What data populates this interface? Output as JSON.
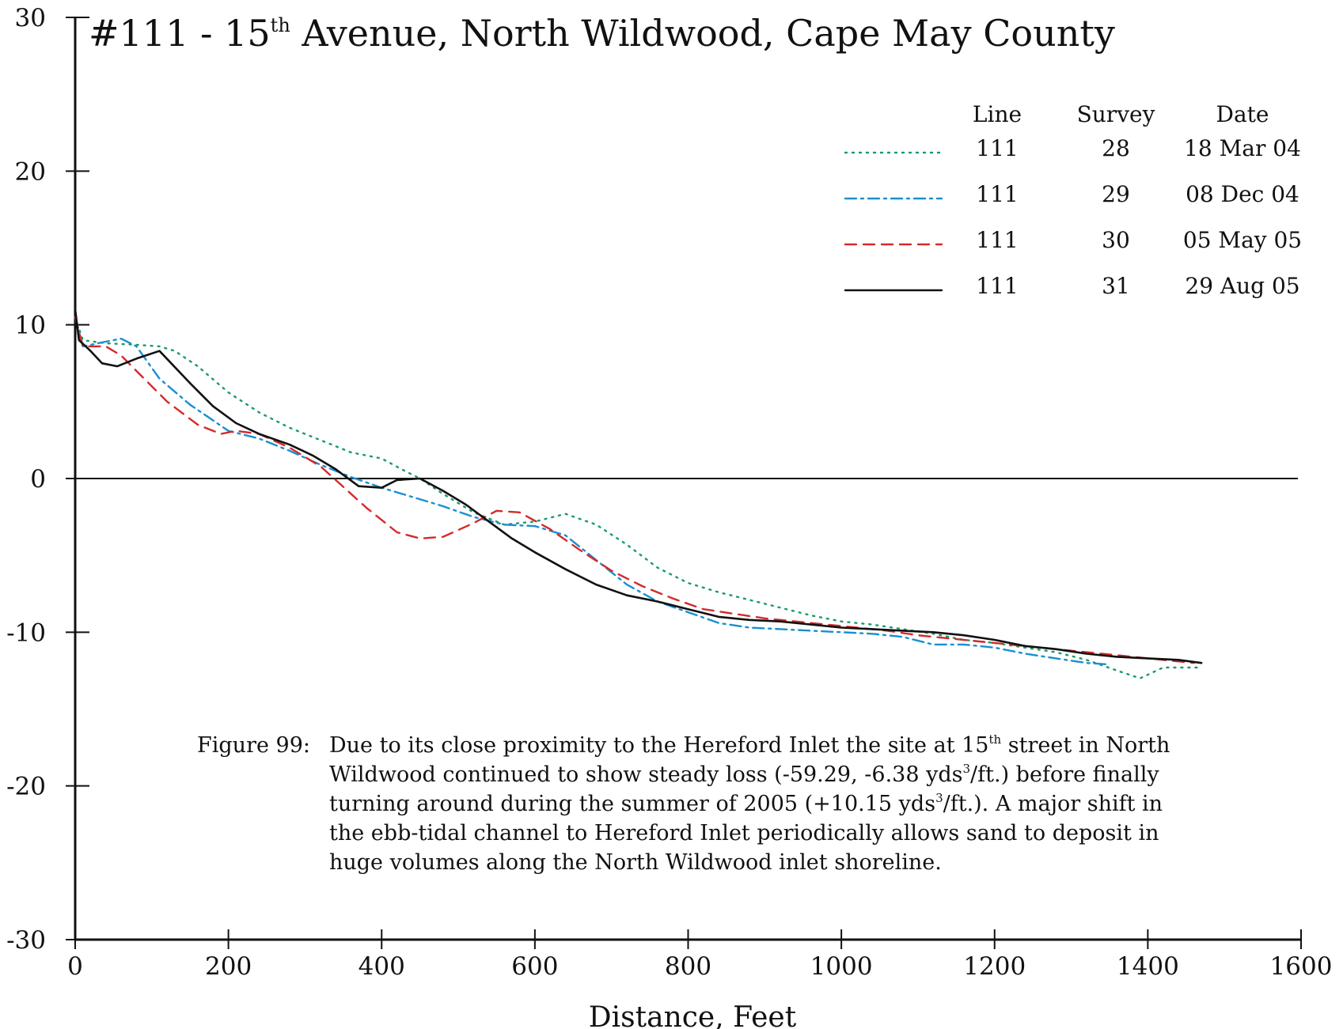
{
  "chart_data": {
    "type": "line",
    "title": {
      "prefix": "#111 - 15",
      "sup": "th",
      "rest": " Avenue, North Wildwood, Cape May County"
    },
    "xlabel": "Distance, Feet",
    "ylabel": "",
    "xlim": [
      0,
      1600
    ],
    "ylim": [
      -30,
      30
    ],
    "xticks": [
      0,
      200,
      400,
      600,
      800,
      1000,
      1200,
      1400,
      1600
    ],
    "yticks": [
      30,
      20,
      10,
      0,
      -10,
      -20,
      -30
    ],
    "zero_line": true,
    "legend": {
      "position": "top-right",
      "headers": [
        "Line",
        "Survey",
        "Date"
      ]
    },
    "series": [
      {
        "line": "111",
        "survey": "28",
        "date": "18 Mar 04",
        "color": "#1a9a6a",
        "style": "dotted",
        "points": [
          [
            0,
            10.5
          ],
          [
            10,
            9.0
          ],
          [
            40,
            8.8
          ],
          [
            80,
            8.7
          ],
          [
            110,
            8.6
          ],
          [
            130,
            8.3
          ],
          [
            160,
            7.3
          ],
          [
            200,
            5.6
          ],
          [
            240,
            4.3
          ],
          [
            280,
            3.3
          ],
          [
            320,
            2.5
          ],
          [
            360,
            1.7
          ],
          [
            400,
            1.3
          ],
          [
            430,
            0.5
          ],
          [
            450,
            0.0
          ],
          [
            480,
            -1.0
          ],
          [
            520,
            -2.2
          ],
          [
            560,
            -3.0
          ],
          [
            600,
            -2.8
          ],
          [
            640,
            -2.3
          ],
          [
            680,
            -3.0
          ],
          [
            720,
            -4.3
          ],
          [
            760,
            -5.8
          ],
          [
            800,
            -6.8
          ],
          [
            840,
            -7.4
          ],
          [
            880,
            -7.9
          ],
          [
            920,
            -8.4
          ],
          [
            960,
            -8.9
          ],
          [
            1000,
            -9.3
          ],
          [
            1040,
            -9.5
          ],
          [
            1080,
            -9.8
          ],
          [
            1120,
            -10.1
          ],
          [
            1160,
            -10.5
          ],
          [
            1200,
            -10.7
          ],
          [
            1240,
            -11.0
          ],
          [
            1280,
            -11.3
          ],
          [
            1320,
            -11.8
          ],
          [
            1360,
            -12.5
          ],
          [
            1390,
            -13.0
          ],
          [
            1420,
            -12.3
          ],
          [
            1470,
            -12.3
          ]
        ]
      },
      {
        "line": "111",
        "survey": "29",
        "date": "08 Dec 04",
        "color": "#1a8fd0",
        "style": "dashdot",
        "points": [
          [
            0,
            10.5
          ],
          [
            10,
            8.6
          ],
          [
            40,
            8.9
          ],
          [
            60,
            9.1
          ],
          [
            80,
            8.6
          ],
          [
            110,
            6.5
          ],
          [
            150,
            4.8
          ],
          [
            200,
            3.1
          ],
          [
            240,
            2.6
          ],
          [
            280,
            1.8
          ],
          [
            320,
            0.9
          ],
          [
            360,
            0.1
          ],
          [
            400,
            -0.6
          ],
          [
            440,
            -1.2
          ],
          [
            480,
            -1.8
          ],
          [
            520,
            -2.5
          ],
          [
            560,
            -3.0
          ],
          [
            600,
            -3.1
          ],
          [
            640,
            -3.7
          ],
          [
            680,
            -5.3
          ],
          [
            720,
            -6.9
          ],
          [
            760,
            -8.0
          ],
          [
            800,
            -8.7
          ],
          [
            840,
            -9.4
          ],
          [
            880,
            -9.7
          ],
          [
            920,
            -9.8
          ],
          [
            960,
            -9.9
          ],
          [
            1000,
            -10.0
          ],
          [
            1040,
            -10.1
          ],
          [
            1080,
            -10.3
          ],
          [
            1120,
            -10.8
          ],
          [
            1160,
            -10.8
          ],
          [
            1200,
            -11.0
          ],
          [
            1240,
            -11.4
          ],
          [
            1280,
            -11.7
          ],
          [
            1320,
            -12.0
          ],
          [
            1350,
            -12.1
          ]
        ]
      },
      {
        "line": "111",
        "survey": "30",
        "date": "05 May 05",
        "color": "#d42a2a",
        "style": "dashed",
        "points": [
          [
            0,
            10.5
          ],
          [
            10,
            8.6
          ],
          [
            40,
            8.6
          ],
          [
            60,
            8.0
          ],
          [
            80,
            7.0
          ],
          [
            120,
            5.0
          ],
          [
            160,
            3.5
          ],
          [
            190,
            2.9
          ],
          [
            210,
            3.1
          ],
          [
            240,
            2.9
          ],
          [
            280,
            2.0
          ],
          [
            320,
            0.8
          ],
          [
            340,
            -0.1
          ],
          [
            380,
            -1.9
          ],
          [
            420,
            -3.5
          ],
          [
            450,
            -3.9
          ],
          [
            480,
            -3.8
          ],
          [
            520,
            -2.9
          ],
          [
            550,
            -2.1
          ],
          [
            580,
            -2.2
          ],
          [
            620,
            -3.3
          ],
          [
            660,
            -4.7
          ],
          [
            700,
            -6.0
          ],
          [
            740,
            -7.0
          ],
          [
            780,
            -7.8
          ],
          [
            820,
            -8.5
          ],
          [
            860,
            -8.8
          ],
          [
            900,
            -9.1
          ],
          [
            940,
            -9.3
          ],
          [
            980,
            -9.5
          ],
          [
            1020,
            -9.7
          ],
          [
            1060,
            -9.9
          ],
          [
            1100,
            -10.2
          ],
          [
            1140,
            -10.4
          ],
          [
            1180,
            -10.6
          ],
          [
            1220,
            -10.8
          ],
          [
            1260,
            -11.0
          ],
          [
            1300,
            -11.2
          ],
          [
            1340,
            -11.4
          ],
          [
            1380,
            -11.6
          ],
          [
            1420,
            -11.8
          ],
          [
            1460,
            -12.0
          ]
        ]
      },
      {
        "line": "111",
        "survey": "31",
        "date": "29 Aug 05",
        "color": "#111111",
        "style": "solid",
        "points": [
          [
            0,
            11.0
          ],
          [
            5,
            9.0
          ],
          [
            20,
            8.3
          ],
          [
            35,
            7.5
          ],
          [
            55,
            7.3
          ],
          [
            80,
            7.8
          ],
          [
            110,
            8.3
          ],
          [
            150,
            6.2
          ],
          [
            180,
            4.7
          ],
          [
            210,
            3.6
          ],
          [
            240,
            2.9
          ],
          [
            280,
            2.2
          ],
          [
            310,
            1.5
          ],
          [
            340,
            0.6
          ],
          [
            370,
            -0.5
          ],
          [
            400,
            -0.6
          ],
          [
            420,
            -0.1
          ],
          [
            450,
            0.0
          ],
          [
            480,
            -0.8
          ],
          [
            510,
            -1.7
          ],
          [
            540,
            -2.8
          ],
          [
            570,
            -3.9
          ],
          [
            600,
            -4.8
          ],
          [
            640,
            -5.9
          ],
          [
            680,
            -6.9
          ],
          [
            720,
            -7.6
          ],
          [
            760,
            -8.0
          ],
          [
            800,
            -8.5
          ],
          [
            840,
            -9.0
          ],
          [
            880,
            -9.2
          ],
          [
            920,
            -9.3
          ],
          [
            960,
            -9.5
          ],
          [
            1000,
            -9.7
          ],
          [
            1040,
            -9.8
          ],
          [
            1080,
            -9.9
          ],
          [
            1120,
            -10.0
          ],
          [
            1160,
            -10.2
          ],
          [
            1200,
            -10.5
          ],
          [
            1240,
            -10.9
          ],
          [
            1280,
            -11.1
          ],
          [
            1320,
            -11.4
          ],
          [
            1360,
            -11.6
          ],
          [
            1400,
            -11.7
          ],
          [
            1440,
            -11.8
          ],
          [
            1470,
            -12.0
          ]
        ]
      }
    ],
    "caption": {
      "label": "Figure 99:",
      "lines": [
        [
          {
            "t": "Due to its close proximity to the Hereford Inlet the site at 15"
          },
          {
            "sup": "th"
          },
          {
            "t": " street in North"
          }
        ],
        [
          {
            "t": "Wildwood continued to show steady loss (-59.29, -6.38 yds"
          },
          {
            "sup": "3"
          },
          {
            "t": "/ft.) before finally"
          }
        ],
        [
          {
            "t": "turning around during the summer of 2005 (+10.15 yds"
          },
          {
            "sup": "3"
          },
          {
            "t": "/ft.).  A major shift in"
          }
        ],
        [
          {
            "t": "the ebb-tidal channel to Hereford Inlet periodically allows sand to deposit in"
          }
        ],
        [
          {
            "t": "huge volumes along the North Wildwood inlet shoreline."
          }
        ]
      ]
    }
  }
}
